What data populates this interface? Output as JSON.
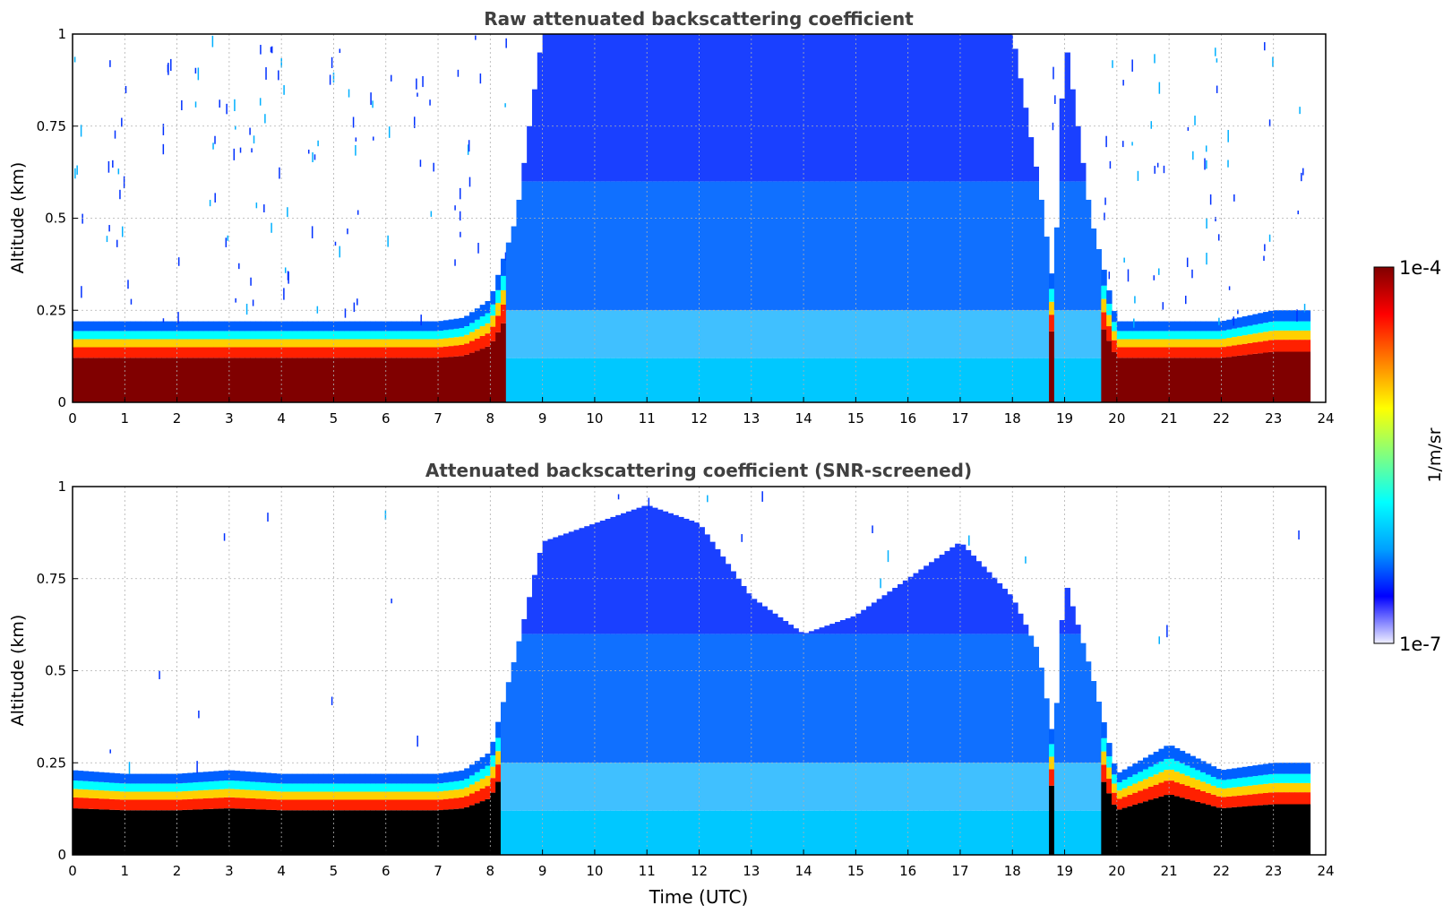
{
  "chart_data": [
    {
      "type": "heatmap",
      "title": "Raw attenuated backscattering coefficient",
      "xlabel": "",
      "ylabel": "Altitude (km)",
      "xlim": [
        0,
        24
      ],
      "ylim": [
        0,
        1
      ],
      "xticks": [
        "0",
        "1",
        "2",
        "3",
        "4",
        "5",
        "6",
        "7",
        "8",
        "9",
        "10",
        "11",
        "12",
        "13",
        "14",
        "15",
        "16",
        "17",
        "18",
        "19",
        "20",
        "21",
        "22",
        "23",
        "24"
      ],
      "yticks": [
        "0",
        "0.25",
        "0.5",
        "0.75",
        "1"
      ],
      "grid": true,
      "screened": false,
      "x": [
        0,
        1,
        2,
        3,
        4,
        5,
        6,
        7,
        7.5,
        8,
        8.5,
        9,
        10,
        11,
        12,
        13,
        14,
        15,
        16,
        17,
        18,
        18.5,
        18.8,
        19,
        19.5,
        20,
        21,
        22,
        23,
        23.7
      ],
      "layer_top_km": [
        0.22,
        0.22,
        0.22,
        0.22,
        0.22,
        0.22,
        0.22,
        0.22,
        0.23,
        0.28,
        0.5,
        1.0,
        1.0,
        1.0,
        1.0,
        1.0,
        1.0,
        1.0,
        1.0,
        1.0,
        1.0,
        0.6,
        0.3,
        1.0,
        0.5,
        0.22,
        0.22,
        0.22,
        0.25,
        0.25
      ],
      "colorbar_range": [
        1e-07,
        0.0001
      ],
      "colorbar_unit": "1/m/sr"
    },
    {
      "type": "heatmap",
      "title": "Attenuated backscattering coefficient (SNR-screened)",
      "xlabel": "Time (UTC)",
      "ylabel": "Altitude (km)",
      "xlim": [
        0,
        24
      ],
      "ylim": [
        0,
        1
      ],
      "xticks": [
        "0",
        "1",
        "2",
        "3",
        "4",
        "5",
        "6",
        "7",
        "8",
        "9",
        "10",
        "11",
        "12",
        "13",
        "14",
        "15",
        "16",
        "17",
        "18",
        "19",
        "20",
        "21",
        "22",
        "23",
        "24"
      ],
      "yticks": [
        "0",
        "0.25",
        "0.5",
        "0.75",
        "1"
      ],
      "grid": true,
      "screened": true,
      "x": [
        0,
        1,
        2,
        3,
        4,
        5,
        6,
        7,
        7.5,
        8,
        8.5,
        9,
        10,
        11,
        12,
        13,
        14,
        15,
        16,
        17,
        18,
        18.5,
        18.8,
        19,
        19.5,
        20,
        21,
        22,
        23,
        23.7
      ],
      "layer_top_km": [
        0.23,
        0.22,
        0.22,
        0.23,
        0.22,
        0.22,
        0.22,
        0.22,
        0.23,
        0.28,
        0.55,
        0.85,
        0.9,
        0.95,
        0.9,
        0.7,
        0.6,
        0.65,
        0.75,
        0.85,
        0.7,
        0.55,
        0.3,
        0.75,
        0.5,
        0.22,
        0.3,
        0.23,
        0.25,
        0.25
      ],
      "colorbar_range": [
        1e-07,
        0.0001
      ],
      "colorbar_unit": "1/m/sr"
    }
  ],
  "colorbar": {
    "max_label": "1e-4",
    "min_label": "1e-7",
    "unit_label": "1/m/sr",
    "colormap": "jet",
    "colors": [
      "#f0f0ff",
      "#0000ff",
      "#00a0ff",
      "#00ffff",
      "#80ff80",
      "#ffff00",
      "#ff8000",
      "#ff0000",
      "#800000"
    ]
  }
}
